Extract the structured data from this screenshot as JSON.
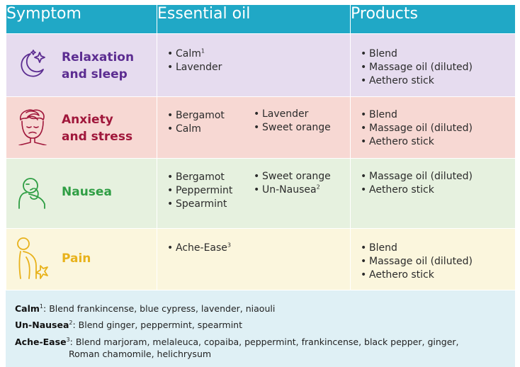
{
  "headers": {
    "symptom": "Symptom",
    "oil": "Essential oil",
    "products": "Products"
  },
  "rows": [
    {
      "symptom_lines": [
        "Relaxation",
        "and sleep"
      ],
      "icon": "moon-stars-icon",
      "oils_a": [
        {
          "text": "Calm",
          "sup": "1"
        },
        {
          "text": "Lavender",
          "sup": ""
        }
      ],
      "oils_b": [],
      "products": [
        "Blend",
        "Massage oil (diluted)",
        "Aethero stick"
      ]
    },
    {
      "symptom_lines": [
        "Anxiety",
        "and stress"
      ],
      "icon": "stressed-face-icon",
      "oils_a": [
        {
          "text": "Bergamot",
          "sup": ""
        },
        {
          "text": "Calm",
          "sup": ""
        }
      ],
      "oils_b": [
        {
          "text": "Lavender",
          "sup": ""
        },
        {
          "text": "Sweet orange",
          "sup": ""
        }
      ],
      "products": [
        "Blend",
        "Massage oil (diluted)",
        "Aethero stick"
      ]
    },
    {
      "symptom_lines": [
        "Nausea"
      ],
      "icon": "nauseous-person-icon",
      "oils_a": [
        {
          "text": "Bergamot",
          "sup": ""
        },
        {
          "text": "Peppermint",
          "sup": ""
        },
        {
          "text": "Spearmint",
          "sup": ""
        }
      ],
      "oils_b": [
        {
          "text": "Sweet orange",
          "sup": ""
        },
        {
          "text": "Un-Nausea",
          "sup": "2"
        }
      ],
      "products": [
        "Massage oil (diluted)",
        "Aethero stick"
      ]
    },
    {
      "symptom_lines": [
        "Pain"
      ],
      "icon": "back-pain-icon",
      "oils_a": [
        {
          "text": "Ache-Ease",
          "sup": "3"
        }
      ],
      "oils_b": [],
      "products": [
        "Blend",
        "Massage oil (diluted)",
        "Aethero stick"
      ]
    }
  ],
  "footnotes": [
    {
      "name": "Calm",
      "sup": "1",
      "text": ": Blend frankincense, blue cypress, lavender, niaouli",
      "cont": ""
    },
    {
      "name": "Un-Nausea",
      "sup": "2",
      "text": ": Blend ginger, peppermint, spearmint",
      "cont": ""
    },
    {
      "name": "Ache-Ease",
      "sup": "3",
      "text": ": Blend marjoram, melaleuca, copaiba, peppermint, frankincense, black pepper, ginger,",
      "cont": "Roman chamomile, helichrysum"
    }
  ],
  "colors": {
    "header": "#20a8c6",
    "relaxation": "#5c2d91",
    "anxiety": "#a0173b",
    "nausea": "#2f9e44",
    "pain": "#e8b21c"
  }
}
